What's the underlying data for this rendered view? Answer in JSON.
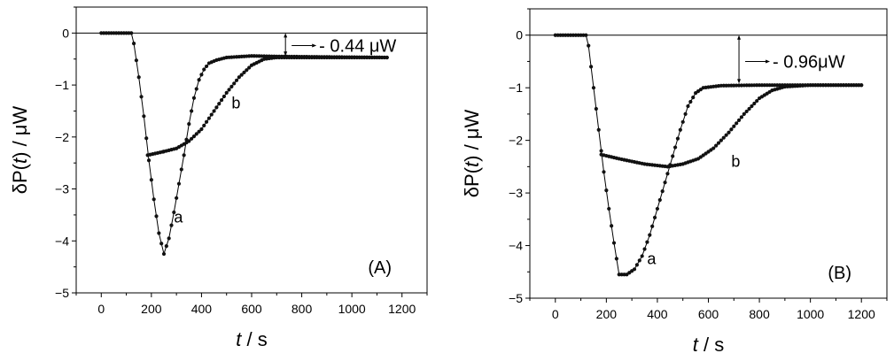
{
  "chart_data": [
    {
      "type": "line",
      "panel_label": "(A)",
      "xlabel_var": "t",
      "xlabel_unit": "s",
      "ylabel_prefix": "δP(",
      "ylabel_var": "t",
      "ylabel_suffix": ") / μW",
      "xlim": [
        -100,
        1300
      ],
      "ylim": [
        -5,
        0.5
      ],
      "xticks": [
        0,
        200,
        400,
        600,
        800,
        1000,
        1200
      ],
      "yticks": [
        0,
        -1,
        -2,
        -3,
        -4,
        -5
      ],
      "ytick_labels": [
        "0",
        "−1",
        "−2",
        "−3",
        "−4",
        "−5"
      ],
      "annotation": {
        "text": "- 0.44 μW",
        "x": 735,
        "from": 0,
        "to": -0.44
      },
      "series": [
        {
          "name": "a",
          "label_at": [
            290,
            -3.65
          ],
          "points": [
            [
              0,
              0
            ],
            [
              120,
              0
            ],
            [
              130,
              -0.2
            ],
            [
              150,
              -0.85
            ],
            [
              170,
              -1.6
            ],
            [
              190,
              -2.45
            ],
            [
              210,
              -3.2
            ],
            [
              230,
              -3.85
            ],
            [
              250,
              -4.25
            ],
            [
              270,
              -3.95
            ],
            [
              290,
              -3.45
            ],
            [
              310,
              -2.9
            ],
            [
              330,
              -2.35
            ],
            [
              350,
              -1.75
            ],
            [
              370,
              -1.25
            ],
            [
              390,
              -0.9
            ],
            [
              410,
              -0.7
            ],
            [
              430,
              -0.58
            ],
            [
              460,
              -0.52
            ],
            [
              500,
              -0.47
            ],
            [
              600,
              -0.44
            ],
            [
              700,
              -0.45
            ],
            [
              900,
              -0.46
            ],
            [
              1140,
              -0.47
            ]
          ]
        },
        {
          "name": "b",
          "label_at": [
            520,
            -1.45
          ],
          "points": [
            [
              185,
              -2.35
            ],
            [
              250,
              -2.28
            ],
            [
              300,
              -2.22
            ],
            [
              350,
              -2.08
            ],
            [
              400,
              -1.85
            ],
            [
              450,
              -1.5
            ],
            [
              500,
              -1.15
            ],
            [
              550,
              -0.85
            ],
            [
              600,
              -0.62
            ],
            [
              650,
              -0.5
            ],
            [
              700,
              -0.47
            ],
            [
              1140,
              -0.47
            ]
          ]
        }
      ]
    },
    {
      "type": "line",
      "panel_label": "(B)",
      "xlabel_var": "t",
      "xlabel_unit": "s",
      "ylabel_prefix": "δP(",
      "ylabel_var": "t",
      "ylabel_suffix": ") / μW",
      "xlim": [
        -100,
        1300
      ],
      "ylim": [
        -5,
        0.5
      ],
      "xticks": [
        0,
        200,
        400,
        600,
        800,
        1000,
        1200
      ],
      "yticks": [
        0,
        -1,
        -2,
        -3,
        -4,
        -5
      ],
      "ytick_labels": [
        "0",
        "−1",
        "−2",
        "−3",
        "−4",
        "−5"
      ],
      "annotation": {
        "text": "- 0.96μW",
        "x": 720,
        "from": 0,
        "to": -0.92
      },
      "series": [
        {
          "name": "a",
          "label_at": [
            360,
            -4.35
          ],
          "points": [
            [
              0,
              0
            ],
            [
              120,
              0
            ],
            [
              130,
              -0.2
            ],
            [
              150,
              -1.0
            ],
            [
              170,
              -1.8
            ],
            [
              190,
              -2.6
            ],
            [
              210,
              -3.3
            ],
            [
              230,
              -3.95
            ],
            [
              250,
              -4.55
            ],
            [
              280,
              -4.55
            ],
            [
              310,
              -4.45
            ],
            [
              340,
              -4.2
            ],
            [
              370,
              -3.8
            ],
            [
              400,
              -3.3
            ],
            [
              430,
              -2.8
            ],
            [
              460,
              -2.3
            ],
            [
              490,
              -1.8
            ],
            [
              520,
              -1.35
            ],
            [
              550,
              -1.1
            ],
            [
              580,
              -1.0
            ],
            [
              650,
              -0.96
            ],
            [
              800,
              -0.95
            ],
            [
              1200,
              -0.95
            ]
          ]
        },
        {
          "name": "b",
          "label_at": [
            690,
            -2.5
          ],
          "points": [
            [
              180,
              -2.27
            ],
            [
              250,
              -2.35
            ],
            [
              350,
              -2.45
            ],
            [
              440,
              -2.5
            ],
            [
              500,
              -2.45
            ],
            [
              560,
              -2.35
            ],
            [
              620,
              -2.15
            ],
            [
              680,
              -1.85
            ],
            [
              740,
              -1.5
            ],
            [
              800,
              -1.2
            ],
            [
              850,
              -1.05
            ],
            [
              900,
              -0.98
            ],
            [
              1000,
              -0.95
            ],
            [
              1200,
              -0.95
            ]
          ]
        }
      ]
    }
  ]
}
